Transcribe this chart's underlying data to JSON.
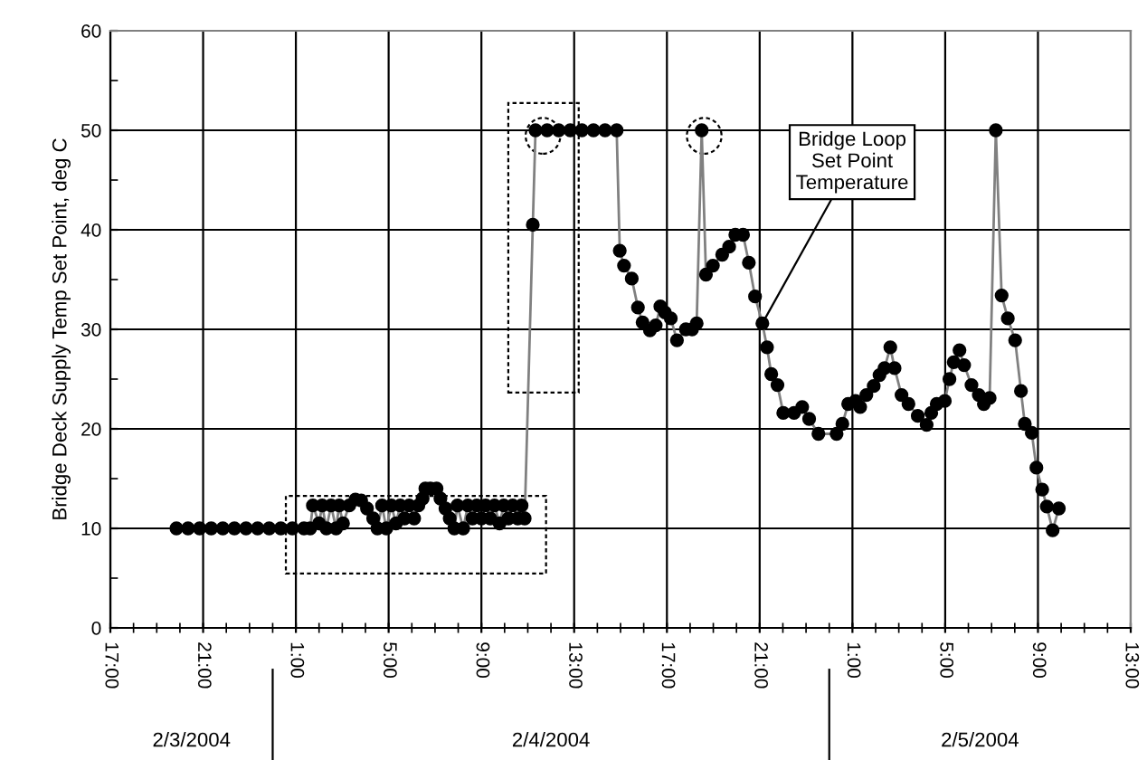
{
  "chart_data": {
    "type": "line",
    "ylabel": "Bridge Deck Supply Temp Set Point, deg C",
    "x": [
      "2004-02-03T19:51",
      "2004-02-03T20:21",
      "2004-02-03T20:51",
      "2004-02-03T21:21",
      "2004-02-03T21:51",
      "2004-02-03T22:21",
      "2004-02-03T22:51",
      "2004-02-03T23:21",
      "2004-02-03T23:51",
      "2004-02-04T00:21",
      "2004-02-04T00:51",
      "2004-02-04T01:21",
      "2004-02-04T01:37",
      "2004-02-04T01:44",
      "2004-02-04T02:00",
      "2004-02-04T02:08",
      "2004-02-04T02:19",
      "2004-02-04T02:31",
      "2004-02-04T02:44",
      "2004-02-04T02:52",
      "2004-02-04T03:02",
      "2004-02-04T03:18",
      "2004-02-04T03:34",
      "2004-02-04T03:49",
      "2004-02-04T04:04",
      "2004-02-04T04:20",
      "2004-02-04T04:31",
      "2004-02-04T04:43",
      "2004-02-04T04:54",
      "2004-02-04T05:07",
      "2004-02-04T05:19",
      "2004-02-04T05:30",
      "2004-02-04T05:41",
      "2004-02-04T05:53",
      "2004-02-04T06:06",
      "2004-02-04T06:17",
      "2004-02-04T06:28",
      "2004-02-04T06:35",
      "2004-02-04T06:48",
      "2004-02-04T07:04",
      "2004-02-04T07:14",
      "2004-02-04T07:27",
      "2004-02-04T07:38",
      "2004-02-04T07:50",
      "2004-02-04T07:58",
      "2004-02-04T08:13",
      "2004-02-04T08:25",
      "2004-02-04T08:37",
      "2004-02-04T08:48",
      "2004-02-04T09:00",
      "2004-02-04T09:11",
      "2004-02-04T09:23",
      "2004-02-04T09:34",
      "2004-02-04T09:47",
      "2004-02-04T09:58",
      "2004-02-04T10:10",
      "2004-02-04T10:21",
      "2004-02-04T10:34",
      "2004-02-04T10:44",
      "2004-02-04T10:52",
      "2004-02-04T11:13",
      "2004-02-04T11:20",
      "2004-02-04T11:50",
      "2004-02-04T12:20",
      "2004-02-04T12:50",
      "2004-02-04T13:20",
      "2004-02-04T13:50",
      "2004-02-04T14:20",
      "2004-02-04T14:50",
      "2004-02-04T14:58",
      "2004-02-04T15:09",
      "2004-02-04T15:29",
      "2004-02-04T15:45",
      "2004-02-04T15:57",
      "2004-02-04T16:16",
      "2004-02-04T16:31",
      "2004-02-04T16:43",
      "2004-02-04T16:55",
      "2004-02-04T17:10",
      "2004-02-04T17:26",
      "2004-02-04T17:49",
      "2004-02-04T18:05",
      "2004-02-04T18:17",
      "2004-02-04T18:30",
      "2004-02-04T18:41",
      "2004-02-04T18:59",
      "2004-02-04T19:23",
      "2004-02-04T19:41",
      "2004-02-04T19:57",
      "2004-02-04T20:17",
      "2004-02-04T20:32",
      "2004-02-04T20:48",
      "2004-02-04T21:07",
      "2004-02-04T21:19",
      "2004-02-04T21:30",
      "2004-02-04T21:46",
      "2004-02-04T22:01",
      "2004-02-04T22:29",
      "2004-02-04T22:50",
      "2004-02-04T23:08",
      "2004-02-04T23:32",
      "2004-02-05T00:19",
      "2004-02-05T00:34",
      "2004-02-05T00:49",
      "2004-02-05T01:08",
      "2004-02-05T01:20",
      "2004-02-05T01:36",
      "2004-02-05T01:55",
      "2004-02-05T02:10",
      "2004-02-05T02:23",
      "2004-02-05T02:38",
      "2004-02-05T02:49",
      "2004-02-05T03:07",
      "2004-02-05T03:25",
      "2004-02-05T03:49",
      "2004-02-05T04:12",
      "2004-02-05T04:24",
      "2004-02-05T04:38",
      "2004-02-05T04:59",
      "2004-02-05T05:11",
      "2004-02-05T05:22",
      "2004-02-05T05:37",
      "2004-02-05T05:49",
      "2004-02-05T06:08",
      "2004-02-05T06:27",
      "2004-02-05T06:40",
      "2004-02-05T06:55",
      "2004-02-05T07:11",
      "2004-02-05T07:26",
      "2004-02-05T07:42",
      "2004-02-05T08:01",
      "2004-02-05T08:16",
      "2004-02-05T08:26",
      "2004-02-05T08:44",
      "2004-02-05T08:56",
      "2004-02-05T09:11",
      "2004-02-05T09:23",
      "2004-02-05T09:38",
      "2004-02-05T09:54"
    ],
    "series": [
      {
        "color": "#000000",
        "values": [
          10,
          10,
          10,
          10,
          10,
          10,
          10,
          10,
          10,
          10,
          10,
          10,
          10,
          12.3,
          10.5,
          12.3,
          10,
          12.3,
          10,
          12.3,
          10.5,
          12.3,
          12.9,
          12.8,
          12,
          11,
          10,
          12.3,
          10,
          12.3,
          10.5,
          12.3,
          11,
          12.3,
          11,
          12.3,
          13,
          14,
          14,
          14,
          13,
          12,
          11,
          10,
          12.3,
          10,
          12.3,
          11,
          12.3,
          11,
          12.3,
          11,
          12.3,
          10.5,
          12.3,
          11,
          12.3,
          11,
          12.3,
          11,
          40.5,
          50,
          50,
          50,
          50,
          50,
          50,
          50,
          50,
          37.9,
          36.4,
          35.1,
          32.2,
          30.7,
          29.9,
          30.4,
          32.3,
          31.7,
          31.1,
          28.9,
          30,
          30,
          30.6,
          50,
          35.5,
          36.4,
          37.5,
          38.3,
          39.5,
          39.5,
          36.7,
          33.3,
          30.6,
          28.2,
          25.5,
          24.4,
          21.6,
          21.6,
          22.2,
          21,
          19.5,
          19.5,
          20.5,
          22.5,
          22.8,
          22.2,
          23.4,
          24.3,
          25.4,
          26.1,
          28.2,
          26.1,
          23.4,
          22.5,
          21.3,
          20.4,
          21.6,
          22.5,
          22.8,
          25,
          26.7,
          27.9,
          26.4,
          24.4,
          23.4,
          22.5,
          23.1,
          50,
          33.4,
          31.1,
          28.9,
          23.8,
          20.5,
          19.6,
          16.1,
          13.9,
          12.2,
          9.8,
          12
        ]
      }
    ],
    "xlim": [
      "2004-02-03T17:00",
      "2004-02-05T13:00"
    ],
    "xticks": [
      {
        "value": "2004-02-03T17:00",
        "label": "17:00"
      },
      {
        "value": "2004-02-03T21:00",
        "label": "21:00"
      },
      {
        "value": "2004-02-04T01:00",
        "label": "1:00"
      },
      {
        "value": "2004-02-04T05:00",
        "label": "5:00"
      },
      {
        "value": "2004-02-04T09:00",
        "label": "9:00"
      },
      {
        "value": "2004-02-04T13:00",
        "label": "13:00"
      },
      {
        "value": "2004-02-04T17:00",
        "label": "17:00"
      },
      {
        "value": "2004-02-04T21:00",
        "label": "21:00"
      },
      {
        "value": "2004-02-05T01:00",
        "label": "1:00"
      },
      {
        "value": "2004-02-05T05:00",
        "label": "5:00"
      },
      {
        "value": "2004-02-05T09:00",
        "label": "9:00"
      },
      {
        "value": "2004-02-05T13:00",
        "label": "13:00"
      }
    ],
    "ylim": [
      0,
      60
    ],
    "yticks": [
      0,
      10,
      20,
      30,
      40,
      50,
      60
    ],
    "grid": true,
    "marker": "circle",
    "line_style": "solid",
    "annotations": [
      {
        "text": "Bridge Loop\nSet Point\nTemperature",
        "x": "2004-02-04T21:07",
        "y": 30.6
      },
      "2/3/2004",
      "2/4/2004",
      "2/5/2004"
    ]
  }
}
